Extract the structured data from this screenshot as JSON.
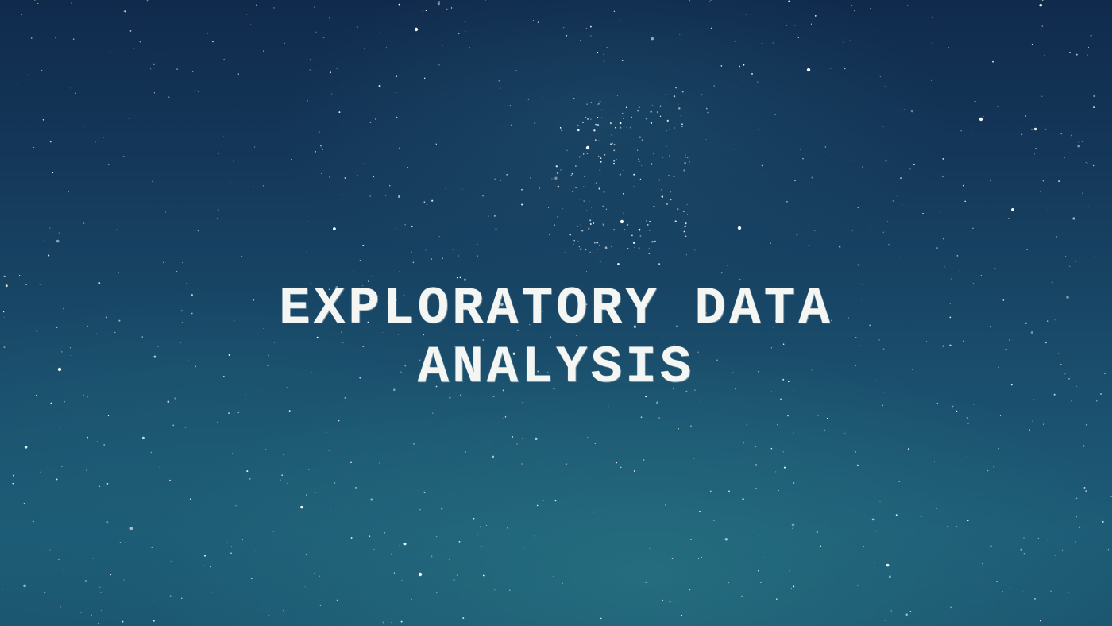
{
  "hero": {
    "title_line1": "EXPLORATORY DATA",
    "title_line2": "ANALYSIS"
  },
  "colors": {
    "sky_top": "#102a4c",
    "sky_bottom": "#1d5b76",
    "text": "#f4f6f4"
  }
}
